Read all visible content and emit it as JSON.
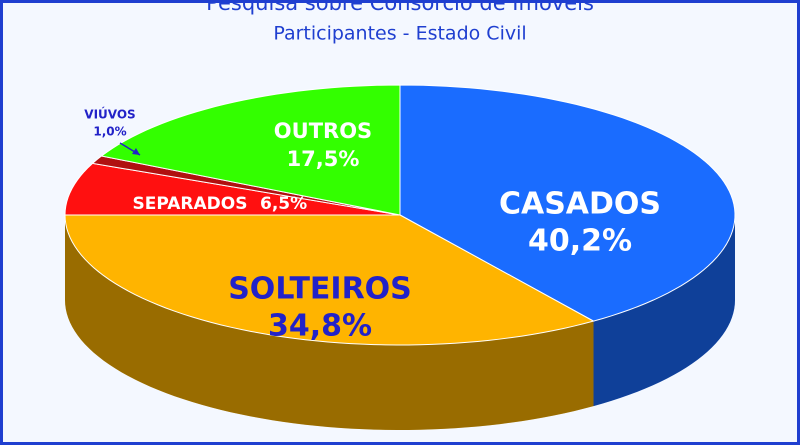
{
  "chart_data": {
    "type": "pie3d",
    "title": "Pesquisa sobre Consórcio de Imóveis",
    "subtitle": "Participantes - Estado Civil",
    "categories": [
      "CASADOS",
      "SOLTEIROS",
      "SEPARADOS",
      "VIÚVOS",
      "OUTROS"
    ],
    "values": [
      40.2,
      34.8,
      6.5,
      1.0,
      17.5
    ],
    "value_labels": [
      "40,2%",
      "34,8%",
      "6,5%",
      "1,0%",
      "17,5%"
    ],
    "colors": [
      "#1a6cff",
      "#ffb400",
      "#ff1010",
      "#b01010",
      "#33ff00"
    ]
  }
}
